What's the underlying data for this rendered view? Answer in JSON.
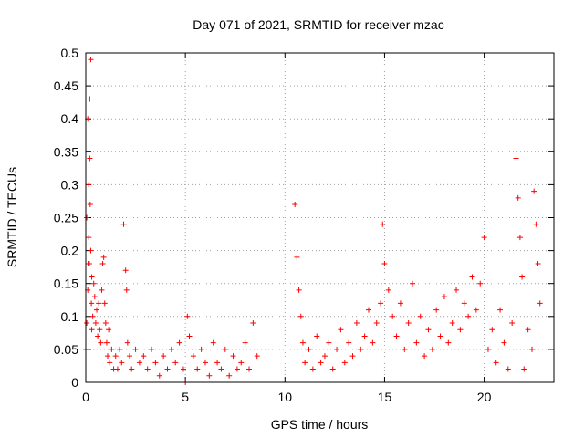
{
  "chart_data": {
    "type": "scatter",
    "title": "Day 071 of 2021, SRMTID for receiver mzac",
    "xlabel": "GPS time / hours",
    "ylabel": "SRMTID / TECUs",
    "xlim": [
      0,
      23.5
    ],
    "ylim": [
      0,
      0.5
    ],
    "xticks": [
      0,
      5,
      10,
      15,
      20
    ],
    "xtick_labels": [
      "0",
      "5",
      "10",
      "15",
      "20"
    ],
    "yticks": [
      0,
      0.05,
      0.1,
      0.15,
      0.2,
      0.25,
      0.3,
      0.35,
      0.4,
      0.45,
      0.5
    ],
    "ytick_labels": [
      "0",
      "0.05",
      "0.1",
      "0.15",
      "0.2",
      "0.25",
      "0.3",
      "0.35",
      "0.4",
      "0.45",
      "0.5"
    ],
    "grid": true,
    "marker": "+",
    "color": "#ff0000",
    "series": [
      {
        "name": "SRMTID",
        "x": [
          0.0,
          0.05,
          0.05,
          0.1,
          0.1,
          0.12,
          0.15,
          0.15,
          0.18,
          0.2,
          0.2,
          0.22,
          0.25,
          0.25,
          0.28,
          0.3,
          0.3,
          0.35,
          0.4,
          0.45,
          0.5,
          0.55,
          0.6,
          0.65,
          0.7,
          0.75,
          0.8,
          0.85,
          0.9,
          0.95,
          1.0,
          1.05,
          1.1,
          1.15,
          1.2,
          1.3,
          1.4,
          1.5,
          1.6,
          1.7,
          1.8,
          1.9,
          2.0,
          2.05,
          2.1,
          2.2,
          2.3,
          2.5,
          2.7,
          2.9,
          3.1,
          3.3,
          3.5,
          3.7,
          3.9,
          4.1,
          4.3,
          4.5,
          4.7,
          4.9,
          5.0,
          5.1,
          5.2,
          5.4,
          5.6,
          5.8,
          6.0,
          6.2,
          6.4,
          6.6,
          6.8,
          7.0,
          7.2,
          7.4,
          7.6,
          7.8,
          8.0,
          8.2,
          8.4,
          8.6,
          10.5,
          10.6,
          10.7,
          10.8,
          10.9,
          11.0,
          11.2,
          11.4,
          11.6,
          11.8,
          12.0,
          12.2,
          12.4,
          12.6,
          12.8,
          13.0,
          13.2,
          13.4,
          13.6,
          13.8,
          14.0,
          14.2,
          14.4,
          14.6,
          14.8,
          14.9,
          15.0,
          15.2,
          15.4,
          15.6,
          15.8,
          16.0,
          16.2,
          16.4,
          16.6,
          16.8,
          17.0,
          17.2,
          17.4,
          17.6,
          17.8,
          18.0,
          18.2,
          18.4,
          18.6,
          18.8,
          19.0,
          19.2,
          19.4,
          19.6,
          19.8,
          20.0,
          20.2,
          20.4,
          20.6,
          20.8,
          21.0,
          21.2,
          21.4,
          21.6,
          21.7,
          21.8,
          21.9,
          22.0,
          22.2,
          22.4,
          22.5,
          22.6,
          22.7,
          22.8
        ],
        "y": [
          0.05,
          0.25,
          0.09,
          0.4,
          0.14,
          0.18,
          0.3,
          0.22,
          0.18,
          0.43,
          0.34,
          0.27,
          0.49,
          0.2,
          0.12,
          0.16,
          0.08,
          0.1,
          0.15,
          0.13,
          0.09,
          0.11,
          0.07,
          0.12,
          0.08,
          0.06,
          0.14,
          0.18,
          0.19,
          0.12,
          0.09,
          0.06,
          0.04,
          0.08,
          0.03,
          0.05,
          0.02,
          0.04,
          0.02,
          0.05,
          0.03,
          0.24,
          0.17,
          0.14,
          0.06,
          0.04,
          0.02,
          0.05,
          0.03,
          0.04,
          0.02,
          0.05,
          0.03,
          0.01,
          0.04,
          0.02,
          0.05,
          0.03,
          0.06,
          0.02,
          0.0,
          0.1,
          0.07,
          0.04,
          0.02,
          0.05,
          0.03,
          0.01,
          0.06,
          0.03,
          0.02,
          0.05,
          0.01,
          0.04,
          0.02,
          0.03,
          0.06,
          0.02,
          0.09,
          0.04,
          0.27,
          0.19,
          0.14,
          0.1,
          0.06,
          0.03,
          0.05,
          0.02,
          0.07,
          0.03,
          0.04,
          0.06,
          0.02,
          0.05,
          0.08,
          0.03,
          0.06,
          0.04,
          0.09,
          0.05,
          0.07,
          0.11,
          0.06,
          0.09,
          0.12,
          0.24,
          0.18,
          0.14,
          0.1,
          0.07,
          0.12,
          0.05,
          0.09,
          0.15,
          0.06,
          0.1,
          0.04,
          0.08,
          0.05,
          0.11,
          0.07,
          0.13,
          0.06,
          0.09,
          0.14,
          0.08,
          0.12,
          0.1,
          0.16,
          0.11,
          0.15,
          0.22,
          0.05,
          0.08,
          0.03,
          0.11,
          0.06,
          0.02,
          0.09,
          0.34,
          0.28,
          0.22,
          0.16,
          0.02,
          0.08,
          0.05,
          0.29,
          0.24,
          0.18,
          0.12
        ]
      }
    ]
  }
}
